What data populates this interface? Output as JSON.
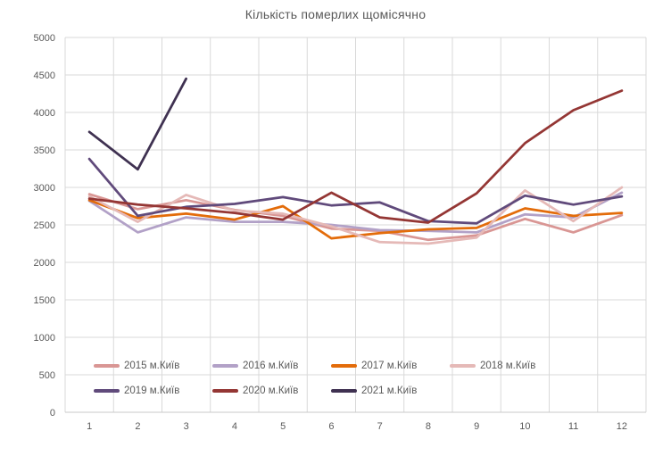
{
  "title": "Кількість померлих щомісячно",
  "colors": {
    "text": "#595959",
    "grid": "#D9D9D9",
    "axis_line": "#C9C9C9"
  },
  "chart_data": {
    "type": "line",
    "title": "Кількість померлих щомісячно",
    "xlabel": "",
    "ylabel": "",
    "categories": [
      "1",
      "2",
      "3",
      "4",
      "5",
      "6",
      "7",
      "8",
      "9",
      "10",
      "11",
      "12"
    ],
    "series": [
      {
        "name": "2015 м.Київ",
        "color": "#D99694",
        "values": [
          2910,
          2710,
          2830,
          2700,
          2620,
          2450,
          2420,
          2300,
          2360,
          2580,
          2400,
          2630
        ]
      },
      {
        "name": "2016 м.Київ",
        "color": "#B2A1C7",
        "values": [
          2820,
          2400,
          2600,
          2540,
          2540,
          2500,
          2430,
          2420,
          2400,
          2640,
          2600,
          2930
        ]
      },
      {
        "name": "2017 м.Київ",
        "color": "#E36C0A",
        "values": [
          2830,
          2590,
          2650,
          2570,
          2750,
          2320,
          2390,
          2440,
          2460,
          2720,
          2620,
          2660
        ]
      },
      {
        "name": "2018 м.Київ",
        "color": "#E5B9B7",
        "values": [
          2880,
          2540,
          2900,
          2690,
          2650,
          2480,
          2270,
          2250,
          2330,
          2960,
          2550,
          3000
        ]
      },
      {
        "name": "2019 м.Київ",
        "color": "#604A7B",
        "values": [
          3380,
          2620,
          2740,
          2780,
          2870,
          2760,
          2800,
          2550,
          2520,
          2890,
          2770,
          2880
        ]
      },
      {
        "name": "2020 м.Київ",
        "color": "#943634",
        "values": [
          2850,
          2770,
          2720,
          2660,
          2570,
          2930,
          2600,
          2530,
          2920,
          3590,
          4030,
          4290
        ]
      },
      {
        "name": "2021 м.Київ",
        "color": "#3F3151",
        "values": [
          3740,
          3240,
          4450
        ]
      }
    ],
    "ylim": [
      0,
      5000
    ],
    "ytick": 500,
    "grid": true,
    "legend_position": "bottom-inside"
  }
}
